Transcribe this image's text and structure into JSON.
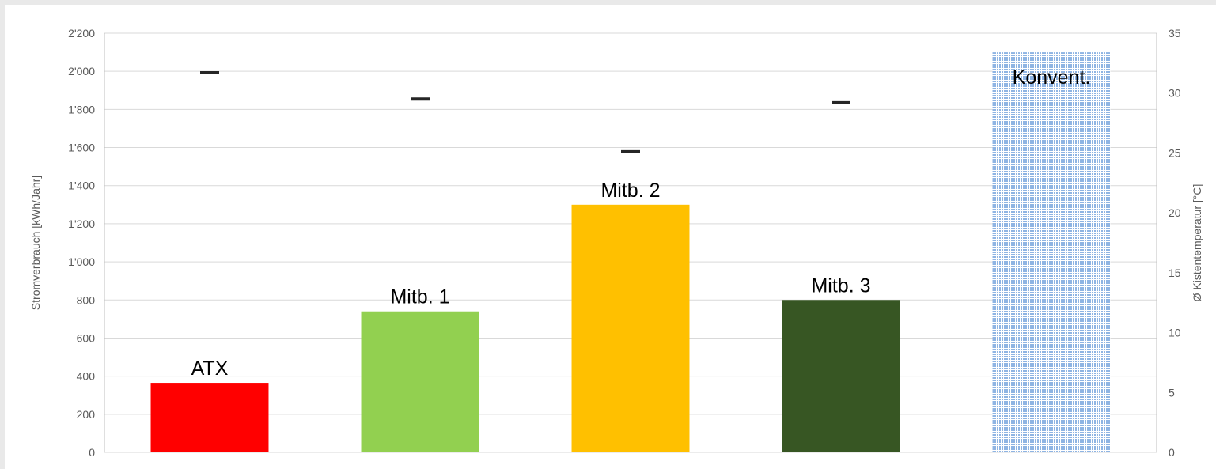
{
  "chart_data": {
    "type": "bar",
    "categories": [
      "ATX",
      "Mitb. 1",
      "Mitb. 2",
      "Mitb. 3",
      "Konvent."
    ],
    "series": [
      {
        "axis": "left",
        "values": [
          365,
          740,
          1300,
          800,
          2100
        ],
        "colors": [
          "#ff0000",
          "#92d050",
          "#ffc000",
          "#375623",
          "#9dc3e6"
        ],
        "patterns": [
          "solid",
          "solid",
          "solid",
          "solid",
          "dotted"
        ]
      },
      {
        "axis": "right",
        "marker": "dash",
        "values": [
          31.7,
          29.5,
          25.1,
          29.2,
          null
        ],
        "color": "#262626"
      }
    ],
    "bar_labels": [
      "ATX",
      "Mitb. 1",
      "Mitb. 2",
      "Mitb. 3",
      "Konvent."
    ],
    "bar_label_position": [
      "above",
      "above",
      "above",
      "above",
      "inside-top"
    ],
    "ylabel": "Stromverbrauch [kWh/Jahr]",
    "ylim": [
      0,
      2200
    ],
    "yticks": [
      0,
      200,
      400,
      600,
      800,
      1000,
      1200,
      1400,
      1600,
      1800,
      2000,
      2200
    ],
    "ytick_labels": [
      "0",
      "200",
      "400",
      "600",
      "800",
      "1'000",
      "1'200",
      "1'400",
      "1'600",
      "1'800",
      "2'000",
      "2'200"
    ],
    "y2label": "Ø Kistentemperatur [°C]",
    "y2lim": [
      0,
      35
    ],
    "y2ticks": [
      0,
      5,
      10,
      15,
      20,
      25,
      30,
      35
    ],
    "y2tick_labels": [
      "0",
      "5",
      "10",
      "15",
      "20",
      "25",
      "30",
      "35"
    ],
    "grid": true,
    "legend": "none"
  }
}
